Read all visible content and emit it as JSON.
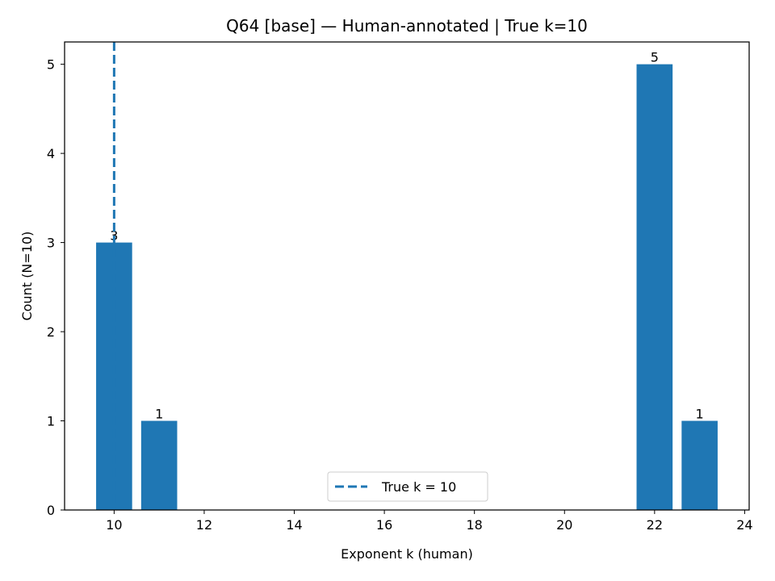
{
  "chart_data": {
    "type": "bar",
    "title": "Q64 [base] — Human-annotated | True k=10",
    "xlabel": "Exponent k (human)",
    "ylabel": "Count (N=10)",
    "x": [
      10,
      11,
      22,
      23
    ],
    "values": [
      3,
      1,
      5,
      1
    ],
    "data_labels": [
      "3",
      "1",
      "5",
      "1"
    ],
    "xlim": [
      8.9,
      24.1
    ],
    "ylim": [
      0,
      5.25
    ],
    "xticks": [
      10,
      12,
      14,
      16,
      18,
      20,
      22,
      24
    ],
    "yticks": [
      0,
      1,
      2,
      3,
      4,
      5
    ],
    "bar_width": 0.8,
    "bar_color": "#1f77b4",
    "reference_line": {
      "x": 10,
      "style": "dashed",
      "color": "#1f77b4",
      "label": "True k = 10"
    },
    "legend": {
      "entries": [
        "True k = 10"
      ],
      "placement": "lower-center"
    },
    "grid": false
  }
}
